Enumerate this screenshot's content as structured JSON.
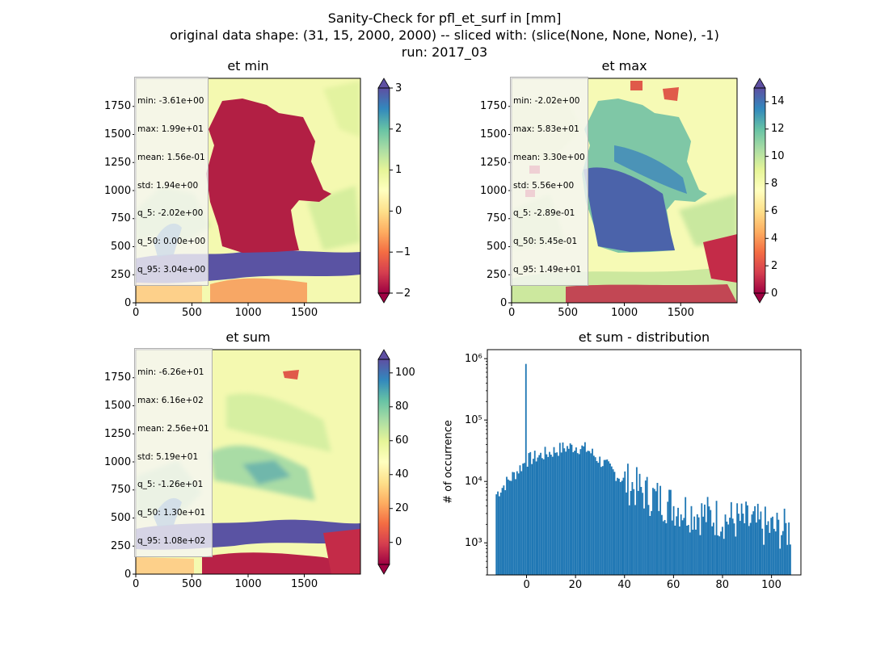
{
  "figure": {
    "title_lines": [
      "Sanity-Check for pfl_et_surf in [mm]",
      "original data shape: (31, 15, 2000, 2000) -- sliced with: (slice(None, None, None), -1)",
      "run: 2017_03"
    ]
  },
  "panels": [
    {
      "title": "et min",
      "stats": [
        "min: -3.61e+00",
        "max: 1.99e+01",
        "mean: 1.56e-01",
        "std: 1.94e+00",
        "q_5: -2.02e+00",
        "q_50: 0.00e+00",
        "q_95: 3.04e+00"
      ],
      "xticks": [
        "0",
        "500",
        "1000",
        "1500"
      ],
      "yticks": [
        "0",
        "250",
        "500",
        "750",
        "1000",
        "1250",
        "1500",
        "1750"
      ],
      "colorbar_ticks": [
        "3",
        "2",
        "1",
        "0",
        "−1",
        "−2"
      ],
      "colorbar_range": [
        -2,
        3
      ]
    },
    {
      "title": "et max",
      "stats": [
        "min: -2.02e+00",
        "max: 5.83e+01",
        "mean: 3.30e+00",
        "std: 5.56e+00",
        "q_5: -2.89e-01",
        "q_50: 5.45e-01",
        "q_95: 1.49e+01"
      ],
      "xticks": [
        "0",
        "500",
        "1000",
        "1500"
      ],
      "yticks": [
        "0",
        "250",
        "500",
        "750",
        "1000",
        "1250",
        "1500",
        "1750"
      ],
      "colorbar_ticks": [
        "14",
        "12",
        "10",
        "8",
        "6",
        "4",
        "2",
        "0"
      ],
      "colorbar_range": [
        0,
        15
      ]
    },
    {
      "title": "et sum",
      "stats": [
        "min: -6.26e+01",
        "max: 6.16e+02",
        "mean: 2.56e+01",
        "std: 5.19e+01",
        "q_5: -1.26e+01",
        "q_50: 1.30e+01",
        "q_95: 1.08e+02"
      ],
      "xticks": [
        "0",
        "500",
        "1000",
        "1500"
      ],
      "yticks": [
        "0",
        "250",
        "500",
        "750",
        "1000",
        "1250",
        "1500",
        "1750"
      ],
      "colorbar_ticks": [
        "100",
        "80",
        "60",
        "40",
        "20",
        "0"
      ],
      "colorbar_range": [
        -13,
        108
      ]
    }
  ],
  "colors": {
    "histogram": "#1f77b4",
    "colormap": "Spectral"
  },
  "chart_data": {
    "type": "bar",
    "title": "et sum - distribution",
    "xlabel": "",
    "ylabel": "# of occurrence",
    "yscale": "log",
    "xlim": [
      -16,
      112
    ],
    "ylim": [
      300,
      1400000
    ],
    "xticks": [
      "0",
      "20",
      "40",
      "60",
      "80",
      "100"
    ],
    "yticks": [
      "10³",
      "10⁴",
      "10⁵",
      "10⁶"
    ],
    "bins": {
      "x_start": -12.6,
      "x_end": 108,
      "n": 200,
      "anchors": [
        [
          -12.6,
          6000
        ],
        [
          -10,
          8000
        ],
        [
          -5,
          13000
        ],
        [
          0,
          22000
        ],
        [
          5,
          26000
        ],
        [
          10,
          30000
        ],
        [
          15,
          35000
        ],
        [
          20,
          37000
        ],
        [
          25,
          33000
        ],
        [
          30,
          22000
        ],
        [
          35,
          15000
        ],
        [
          40,
          10000
        ],
        [
          50,
          6000
        ],
        [
          60,
          4000
        ],
        [
          70,
          3000
        ],
        [
          80,
          2500
        ],
        [
          90,
          2200
        ],
        [
          100,
          1700
        ],
        [
          108,
          1600
        ]
      ],
      "spike": {
        "x": 0,
        "count": 820000
      }
    }
  }
}
